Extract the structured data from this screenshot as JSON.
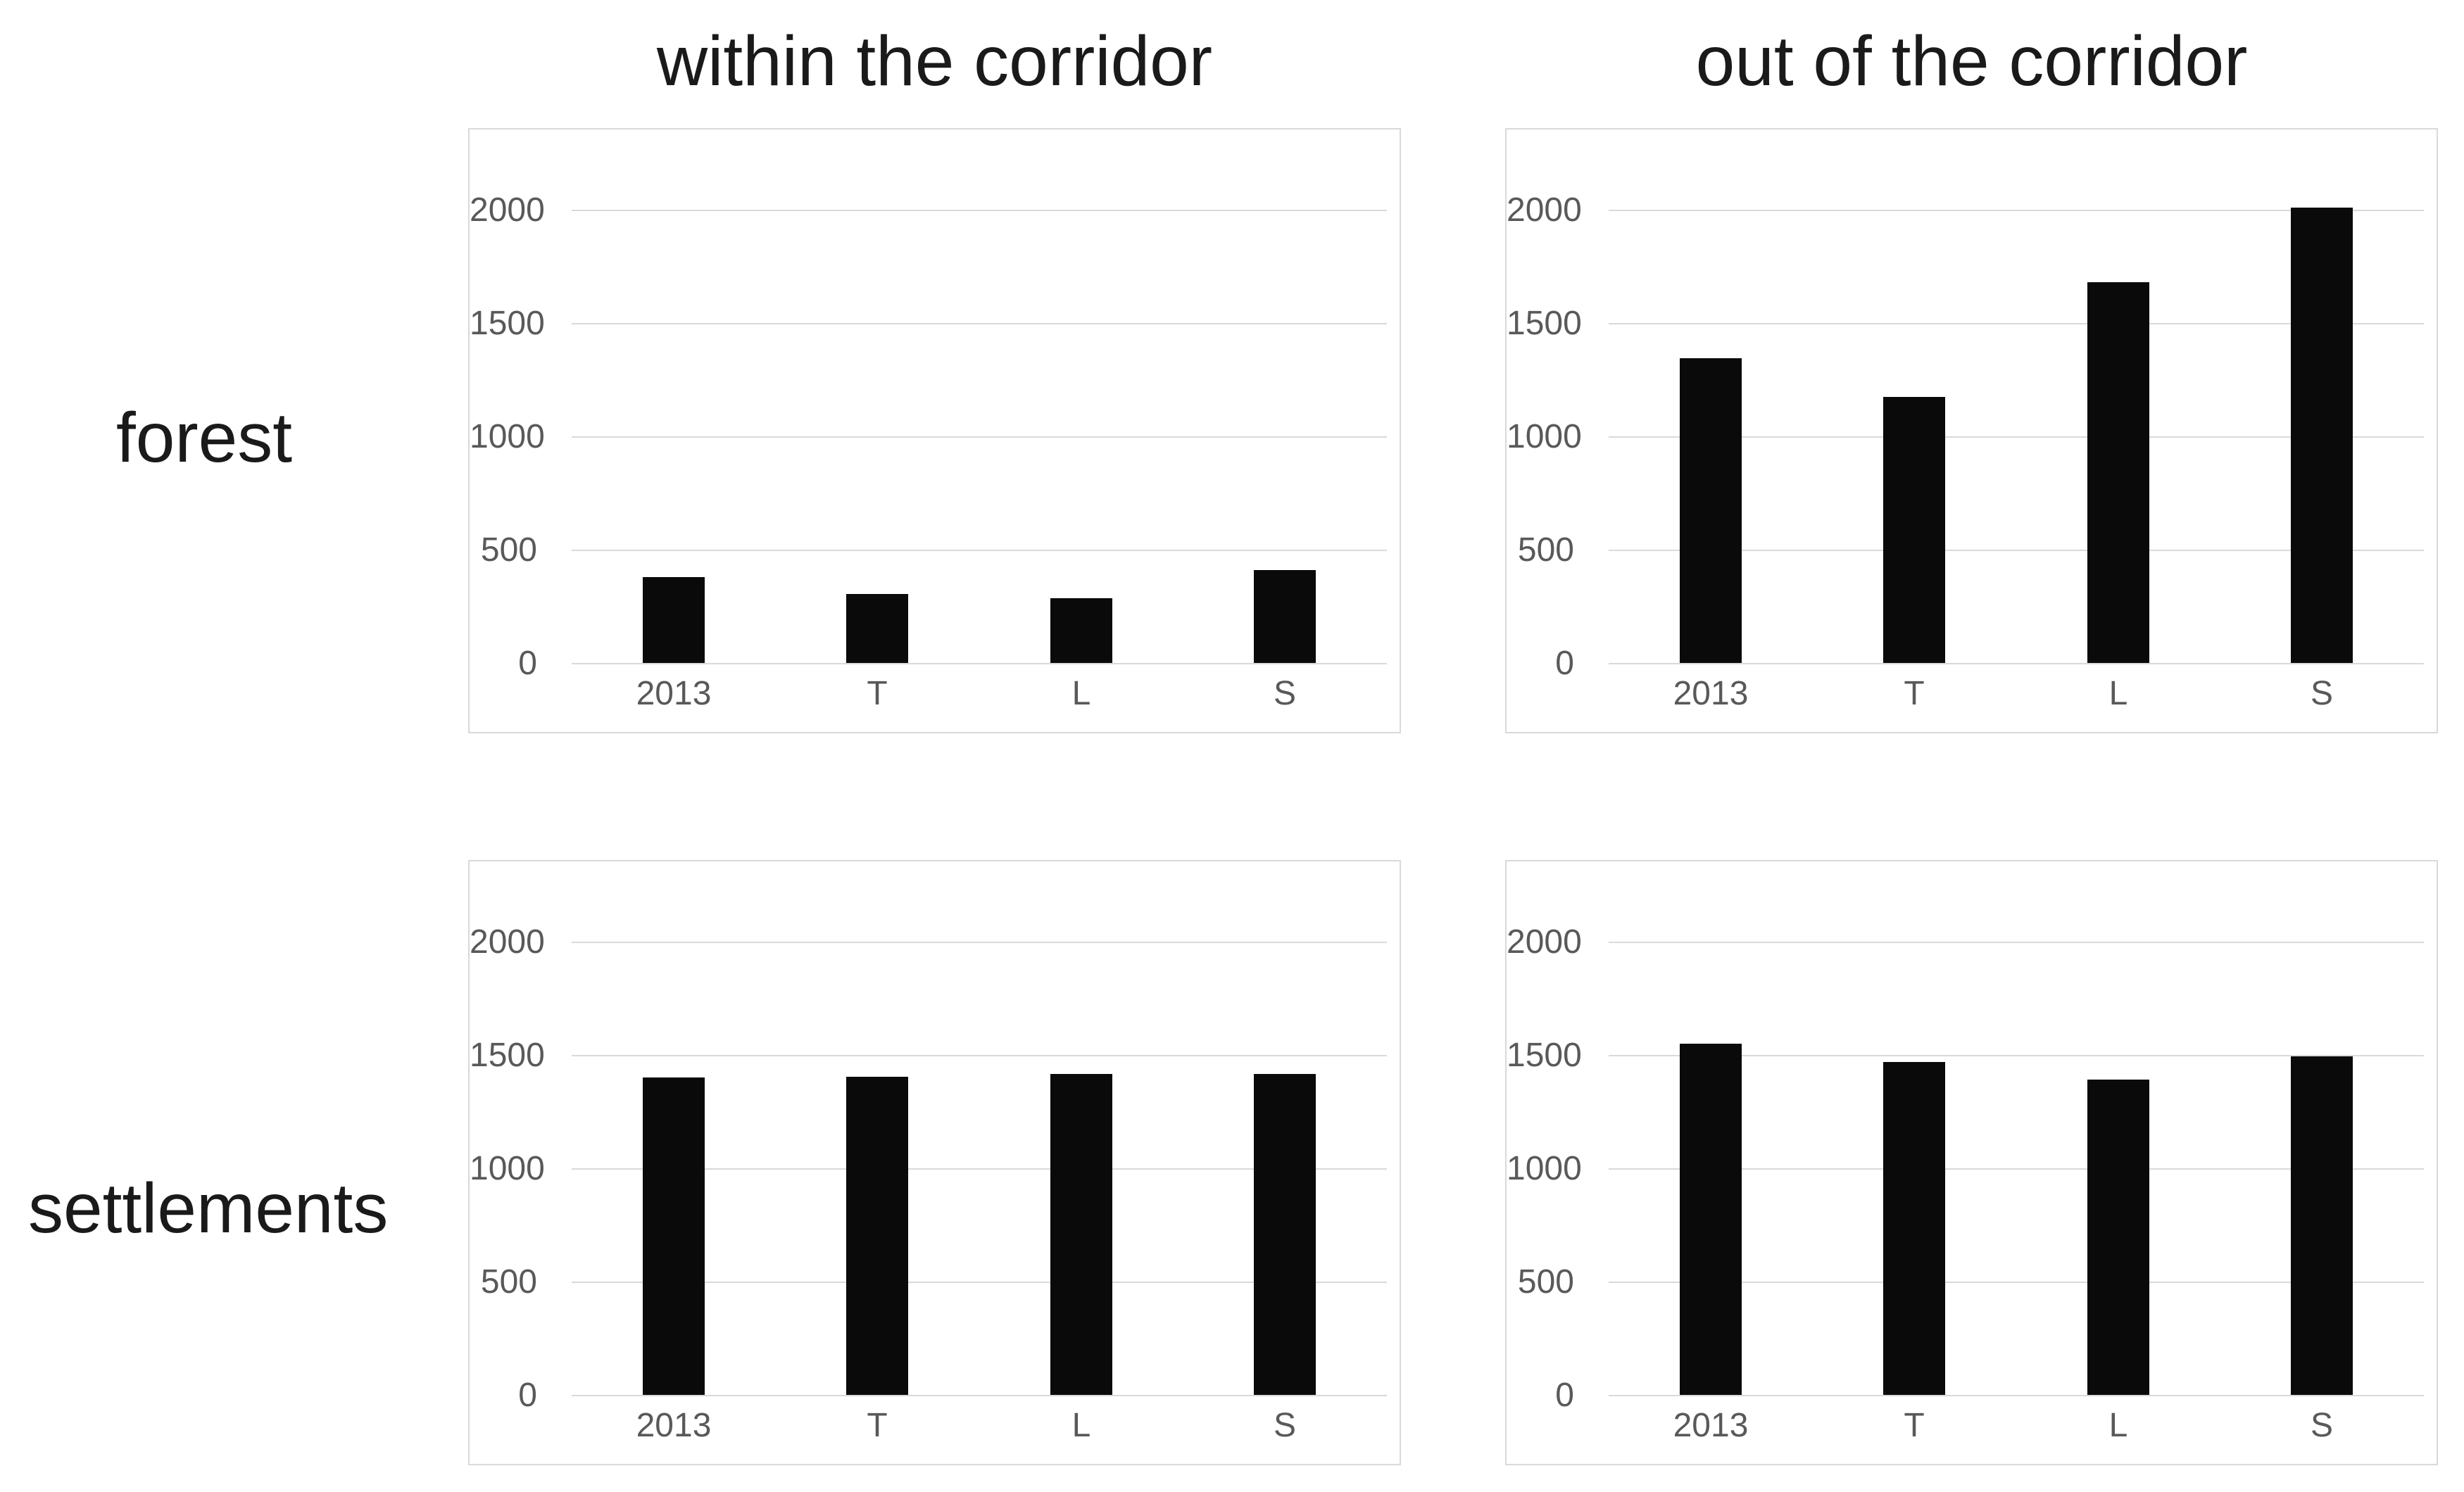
{
  "page": {
    "column_headers": [
      "within the corridor",
      "out of the corridor"
    ],
    "row_headers": [
      "forest",
      "settlements"
    ]
  },
  "colors": {
    "bar": "#0a0a0a",
    "gridline": "#d9d9d9",
    "tick_label": "#595959",
    "frame_border": "#d9d9d9",
    "header_text": "#1a1a1a",
    "background": "#ffffff"
  },
  "chart_data": [
    {
      "id": "forest-within",
      "type": "bar",
      "row": "forest",
      "column": "within the corridor",
      "categories": [
        "2013",
        "T",
        "L",
        "S"
      ],
      "values": [
        380,
        305,
        285,
        410
      ],
      "yticks": [
        0,
        500,
        1000,
        1500,
        2000
      ],
      "ylim": [
        0,
        2350
      ],
      "grid": true,
      "legend": "none"
    },
    {
      "id": "forest-out",
      "type": "bar",
      "row": "forest",
      "column": "out of the corridor",
      "categories": [
        "2013",
        "T",
        "L",
        "S"
      ],
      "values": [
        1345,
        1175,
        1680,
        2010
      ],
      "yticks": [
        0,
        500,
        1000,
        1500,
        2000
      ],
      "ylim": [
        0,
        2350
      ],
      "grid": true,
      "legend": "none"
    },
    {
      "id": "settlements-within",
      "type": "bar",
      "row": "settlements",
      "column": "within the corridor",
      "categories": [
        "2013",
        "T",
        "L",
        "S"
      ],
      "values": [
        1400,
        1405,
        1415,
        1415
      ],
      "yticks": [
        0,
        500,
        1000,
        1500,
        2000
      ],
      "ylim": [
        0,
        2350
      ],
      "grid": true,
      "legend": "none"
    },
    {
      "id": "settlements-out",
      "type": "bar",
      "row": "settlements",
      "column": "out of the corridor",
      "categories": [
        "2013",
        "T",
        "L",
        "S"
      ],
      "values": [
        1550,
        1470,
        1390,
        1495
      ],
      "yticks": [
        0,
        500,
        1000,
        1500,
        2000
      ],
      "ylim": [
        0,
        2350
      ],
      "grid": true,
      "legend": "none"
    }
  ]
}
